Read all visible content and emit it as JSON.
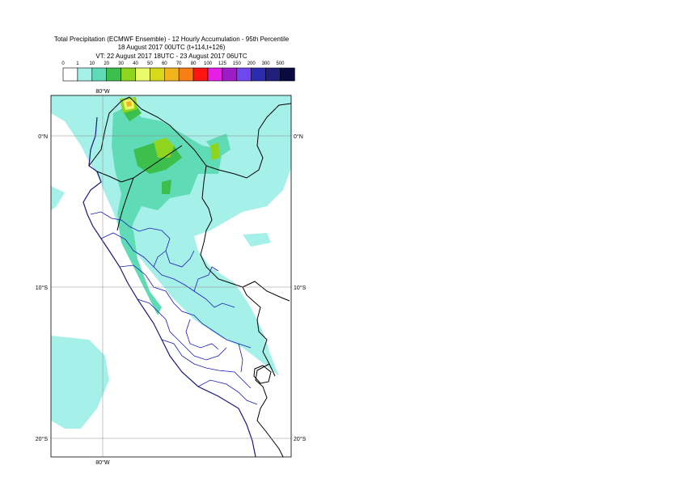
{
  "title": {
    "line1": "Total Precipitation (ECMWF Ensemble) - 12 Hourly Accumulation - 95th Percentile",
    "line2": "18 August 2017 00UTC (t+114,t+126)",
    "line3": "VT: 22 August 2017 18UTC - 23 August 2017 06UTC"
  },
  "legend": {
    "thresholds": [
      "0",
      "1",
      "10",
      "20",
      "30",
      "40",
      "50",
      "60",
      "70",
      "80",
      "100",
      "125",
      "150",
      "200",
      "300",
      "500"
    ],
    "colors": [
      "#ffffff",
      "#a6f0ea",
      "#5fdbb5",
      "#3cbf4c",
      "#8fd41e",
      "#e8fa6a",
      "#d8d81c",
      "#f2b41c",
      "#f77f16",
      "#ff1414",
      "#e61ee6",
      "#9e1cc8",
      "#7046ee",
      "#2c2cb0",
      "#20207a",
      "#0a0a40"
    ]
  },
  "grid_labels": {
    "lon_top": "80°W",
    "lon_bottom": "80°W",
    "lat_0_left": "0°N",
    "lat_0_right": "0°N",
    "lat_10_left": "10°S",
    "lat_10_right": "10°S",
    "lat_20_left": "20°S",
    "lat_20_right": "20°S"
  },
  "map_colors": {
    "light": "#a6f0ea",
    "medium": "#5fdbb5",
    "green": "#3cbf4c",
    "lime": "#8fd41e",
    "yellow": "#e8fa6a",
    "orange": "#f2b41c",
    "country": "#000000",
    "province": "#1a1ab4",
    "coast": "#1a1a7a"
  }
}
